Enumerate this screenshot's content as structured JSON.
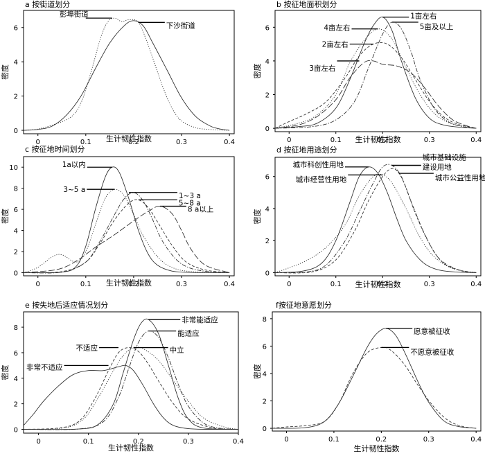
{
  "chart_data": [
    {
      "type": "line",
      "title": "a  按街道划分",
      "xlabel": "生计韧性指数",
      "ylabel": "密度",
      "xlim": [
        -0.03,
        0.41
      ],
      "ylim": [
        -0.2,
        7.0
      ],
      "xticks": [
        "0",
        "0.1",
        "0.2",
        "0.3",
        "0.4"
      ],
      "yticks": [
        "0",
        "2",
        "4",
        "6"
      ],
      "series": [
        {
          "name": "彭埠街道",
          "style": "dotted",
          "x": [
            -0.03,
            0.0,
            0.04,
            0.07,
            0.09,
            0.11,
            0.13,
            0.145,
            0.16,
            0.175,
            0.19,
            0.21,
            0.23,
            0.26,
            0.28,
            0.3,
            0.33,
            0.36,
            0.38,
            0.4
          ],
          "y": [
            0.0,
            0.08,
            0.4,
            0.8,
            1.6,
            3.3,
            5.3,
            6.3,
            6.55,
            6.35,
            6.45,
            6.3,
            5.0,
            2.6,
            1.3,
            0.55,
            0.15,
            0.05,
            0.02,
            0.0
          ]
        },
        {
          "name": "下沙街道",
          "style": "solid",
          "x": [
            -0.03,
            0.0,
            0.03,
            0.06,
            0.09,
            0.12,
            0.15,
            0.18,
            0.2,
            0.22,
            0.24,
            0.27,
            0.3,
            0.33,
            0.36,
            0.38,
            0.4
          ],
          "y": [
            0.0,
            0.05,
            0.25,
            0.9,
            2.0,
            3.6,
            5.1,
            6.1,
            6.4,
            6.1,
            5.1,
            3.5,
            1.9,
            0.8,
            0.25,
            0.08,
            0.0
          ]
        }
      ],
      "annotations": [
        {
          "text": "彭埠街道",
          "x": 0.155,
          "y": 6.55
        },
        {
          "text": "下沙街道",
          "x": 0.21,
          "y": 6.3
        }
      ]
    },
    {
      "type": "line",
      "title": "b  按征地面积划分",
      "xlabel": "生计韧性指数",
      "ylabel": "密度",
      "xlim": [
        -0.03,
        0.41
      ],
      "ylim": [
        -0.2,
        7.0
      ],
      "xticks": [
        "0",
        "0.1",
        "0.2",
        "0.3",
        "0.4"
      ],
      "yticks": [
        "0",
        "2",
        "4",
        "6"
      ],
      "series": [
        {
          "name": "1亩左右",
          "style": "solid",
          "x": [
            -0.03,
            0.02,
            0.06,
            0.1,
            0.13,
            0.16,
            0.18,
            0.2,
            0.22,
            0.24,
            0.27,
            0.3,
            0.33,
            0.37,
            0.4
          ],
          "y": [
            0.0,
            0.1,
            0.3,
            1.2,
            2.9,
            5.0,
            6.1,
            6.6,
            5.8,
            4.0,
            1.8,
            0.6,
            0.2,
            0.05,
            0.0
          ]
        },
        {
          "name": "5亩及以上",
          "style": "dashdot",
          "x": [
            -0.03,
            0.05,
            0.1,
            0.14,
            0.17,
            0.2,
            0.22,
            0.24,
            0.26,
            0.28,
            0.31,
            0.34,
            0.37,
            0.4
          ],
          "y": [
            0.0,
            0.1,
            0.5,
            1.6,
            3.6,
            5.6,
            6.3,
            5.9,
            4.6,
            2.9,
            1.2,
            0.4,
            0.1,
            0.0
          ]
        },
        {
          "name": "4亩左右",
          "style": "dotted",
          "x": [
            -0.03,
            0.02,
            0.06,
            0.1,
            0.13,
            0.16,
            0.19,
            0.22,
            0.25,
            0.28,
            0.31,
            0.34,
            0.38,
            0.4
          ],
          "y": [
            0.0,
            0.3,
            0.8,
            2.0,
            3.9,
            5.2,
            5.9,
            5.3,
            3.6,
            2.0,
            0.9,
            0.35,
            0.1,
            0.0
          ]
        },
        {
          "name": "2亩左右",
          "style": "dashed",
          "x": [
            -0.03,
            0.0,
            0.04,
            0.08,
            0.12,
            0.15,
            0.18,
            0.21,
            0.24,
            0.27,
            0.3,
            0.33,
            0.36,
            0.4
          ],
          "y": [
            0.0,
            0.4,
            0.9,
            1.6,
            3.0,
            4.3,
            5.0,
            5.0,
            4.2,
            2.9,
            1.6,
            0.7,
            0.25,
            0.0
          ]
        },
        {
          "name": "3亩左右",
          "style": "longdash",
          "x": [
            -0.03,
            0.02,
            0.06,
            0.1,
            0.13,
            0.16,
            0.18,
            0.2,
            0.23,
            0.26,
            0.29,
            0.32,
            0.35,
            0.38,
            0.4
          ],
          "y": [
            0.0,
            0.2,
            0.7,
            1.7,
            3.0,
            3.9,
            4.0,
            3.8,
            3.7,
            3.3,
            2.4,
            1.3,
            0.5,
            0.15,
            0.0
          ]
        }
      ],
      "annotations": [
        {
          "text": "1亩左右",
          "x": 0.2,
          "y": 6.6
        },
        {
          "text": "5亩及以上",
          "x": 0.22,
          "y": 6.3
        },
        {
          "text": "4亩左右",
          "x": 0.19,
          "y": 5.9
        },
        {
          "text": "2亩左右",
          "x": 0.18,
          "y": 5.0
        },
        {
          "text": "3亩左右",
          "x": 0.15,
          "y": 4.0
        }
      ]
    },
    {
      "type": "line",
      "title": "c  按征地时间划分",
      "xlabel": "生计韧性指数",
      "ylabel": "密度",
      "xlim": [
        -0.03,
        0.41
      ],
      "ylim": [
        -0.3,
        11.0
      ],
      "xticks": [
        "0",
        "0.1",
        "0.2",
        "0.3",
        "0.4"
      ],
      "yticks": [
        "0",
        "2",
        "4",
        "6",
        "8",
        "10"
      ],
      "series": [
        {
          "name": "1a以内",
          "style": "solid",
          "x": [
            -0.03,
            0.05,
            0.08,
            0.1,
            0.12,
            0.14,
            0.155,
            0.17,
            0.19,
            0.21,
            0.23,
            0.25,
            0.28,
            0.32,
            0.4
          ],
          "y": [
            0.0,
            0.05,
            0.6,
            2.5,
            6.0,
            9.0,
            10.0,
            9.5,
            7.0,
            4.0,
            1.8,
            0.7,
            0.15,
            0.02,
            0.0
          ]
        },
        {
          "name": "3~5 a",
          "style": "dotted",
          "x": [
            -0.03,
            0.0,
            0.03,
            0.05,
            0.08,
            0.1,
            0.12,
            0.14,
            0.16,
            0.18,
            0.2,
            0.22,
            0.25,
            0.28,
            0.32,
            0.4
          ],
          "y": [
            0.0,
            0.5,
            1.5,
            1.7,
            1.0,
            2.0,
            4.5,
            7.0,
            7.9,
            7.3,
            5.5,
            3.5,
            1.5,
            0.5,
            0.1,
            0.0
          ]
        },
        {
          "name": "1~3 a",
          "style": "dashdot",
          "x": [
            -0.03,
            0.05,
            0.1,
            0.13,
            0.16,
            0.18,
            0.2,
            0.22,
            0.24,
            0.26,
            0.29,
            0.32,
            0.36,
            0.4
          ],
          "y": [
            0.0,
            0.05,
            1.0,
            3.0,
            5.5,
            7.0,
            7.6,
            6.8,
            5.0,
            3.0,
            1.2,
            0.4,
            0.08,
            0.0
          ]
        },
        {
          "name": "5~8 a",
          "style": "dashed",
          "x": [
            -0.03,
            0.05,
            0.1,
            0.13,
            0.16,
            0.19,
            0.21,
            0.23,
            0.25,
            0.28,
            0.31,
            0.35,
            0.4
          ],
          "y": [
            0.0,
            0.1,
            1.0,
            2.8,
            5.0,
            6.6,
            6.9,
            6.2,
            4.8,
            2.6,
            1.0,
            0.25,
            0.0
          ]
        },
        {
          "name": "8 a以上",
          "style": "longdash",
          "x": [
            -0.03,
            0.04,
            0.08,
            0.12,
            0.16,
            0.2,
            0.23,
            0.255,
            0.28,
            0.3,
            0.32,
            0.35,
            0.4
          ],
          "y": [
            0.0,
            0.3,
            1.1,
            2.4,
            3.6,
            4.9,
            5.8,
            6.3,
            5.6,
            4.0,
            2.2,
            0.7,
            0.0
          ]
        }
      ],
      "annotations": [
        {
          "text": "1a以内",
          "x": 0.155,
          "y": 10.0
        },
        {
          "text": "3~5 a",
          "x": 0.16,
          "y": 7.9
        },
        {
          "text": "1~3 a",
          "x": 0.19,
          "y": 7.6
        },
        {
          "text": "5~8 a",
          "x": 0.21,
          "y": 6.9
        },
        {
          "text": "8 a以上",
          "x": 0.255,
          "y": 6.3
        }
      ]
    },
    {
      "type": "line",
      "title": "d  按征地用途划分",
      "xlabel": "生计韧性指数",
      "ylabel": "密度",
      "xlim": [
        -0.03,
        0.41
      ],
      "ylim": [
        -0.2,
        7.2
      ],
      "xticks": [
        "0",
        "0.1",
        "0.2",
        "0.3",
        "0.4"
      ],
      "yticks": [
        "0",
        "2",
        "4",
        "6"
      ],
      "series": [
        {
          "name": "城市科创性用地",
          "style": "solid",
          "x": [
            -0.03,
            0.03,
            0.07,
            0.1,
            0.13,
            0.15,
            0.17,
            0.19,
            0.21,
            0.23,
            0.25,
            0.28,
            0.31,
            0.35,
            0.4
          ],
          "y": [
            0.0,
            0.1,
            0.6,
            2.0,
            4.4,
            6.0,
            6.6,
            6.2,
            5.0,
            3.4,
            2.0,
            0.8,
            0.25,
            0.05,
            0.0
          ]
        },
        {
          "name": "城市基础设施建设用地",
          "style": "dashdot",
          "x": [
            -0.03,
            0.04,
            0.08,
            0.12,
            0.15,
            0.18,
            0.2,
            0.22,
            0.24,
            0.26,
            0.29,
            0.32,
            0.36,
            0.4
          ],
          "y": [
            0.0,
            0.05,
            0.5,
            2.0,
            3.8,
            5.6,
            6.6,
            6.7,
            6.0,
            4.5,
            2.4,
            0.9,
            0.2,
            0.0
          ]
        },
        {
          "name": "城市经营性用地",
          "style": "dotted",
          "x": [
            -0.03,
            0.0,
            0.04,
            0.08,
            0.12,
            0.15,
            0.18,
            0.2,
            0.22,
            0.25,
            0.28,
            0.31,
            0.35,
            0.4
          ],
          "y": [
            0.0,
            0.3,
            0.8,
            1.6,
            3.0,
            4.8,
            6.0,
            6.1,
            5.6,
            4.0,
            2.2,
            1.0,
            0.25,
            0.0
          ]
        },
        {
          "name": "城市公益性用地",
          "style": "dashed",
          "x": [
            -0.03,
            0.05,
            0.1,
            0.14,
            0.17,
            0.2,
            0.22,
            0.235,
            0.25,
            0.27,
            0.3,
            0.33,
            0.37,
            0.4
          ],
          "y": [
            0.0,
            0.05,
            0.8,
            2.6,
            4.5,
            6.0,
            6.5,
            6.2,
            5.3,
            3.7,
            1.8,
            0.6,
            0.1,
            0.0
          ]
        }
      ],
      "annotations": [
        {
          "text": "城市科创性用地",
          "x": 0.17,
          "y": 6.6
        },
        {
          "text": "城市基础设施",
          "x": 0.22,
          "y": 6.7
        },
        {
          "text": "建设用地",
          "x": 0.22,
          "y": 6.7
        },
        {
          "text": "城市经营性用地",
          "x": 0.2,
          "y": 6.1
        },
        {
          "text": "城市公益性用地",
          "x": 0.235,
          "y": 6.2
        }
      ]
    },
    {
      "type": "line",
      "title": "e  按失地后适应情况划分",
      "xlabel": "生计韧性指数",
      "ylabel": "密度",
      "xlim": [
        -0.03,
        0.4
      ],
      "ylim": [
        -0.3,
        9.2
      ],
      "xticks": [
        "0",
        "0.1",
        "0.2",
        "0.3",
        "0.4"
      ],
      "yticks": [
        "0",
        "2",
        "4",
        "6",
        "8"
      ],
      "series": [
        {
          "name": "非常能适应",
          "style": "solid",
          "x": [
            -0.03,
            0.08,
            0.12,
            0.15,
            0.17,
            0.19,
            0.205,
            0.22,
            0.24,
            0.26,
            0.28,
            0.3,
            0.33,
            0.4
          ],
          "y": [
            0.0,
            0.02,
            0.4,
            2.0,
            4.5,
            7.0,
            8.3,
            8.6,
            7.5,
            5.0,
            2.4,
            0.8,
            0.1,
            0.0
          ]
        },
        {
          "name": "能适应",
          "style": "dashdot",
          "x": [
            -0.03,
            0.08,
            0.13,
            0.16,
            0.18,
            0.2,
            0.22,
            0.24,
            0.26,
            0.28,
            0.3,
            0.33,
            0.36,
            0.4
          ],
          "y": [
            0.0,
            0.02,
            0.6,
            2.5,
            4.7,
            6.8,
            7.7,
            7.2,
            5.6,
            3.5,
            1.8,
            0.5,
            0.1,
            0.0
          ]
        },
        {
          "name": "不适应",
          "style": "dashed",
          "x": [
            -0.03,
            0.04,
            0.08,
            0.11,
            0.14,
            0.16,
            0.18,
            0.2,
            0.22,
            0.24,
            0.27,
            0.3,
            0.35,
            0.4
          ],
          "y": [
            0.0,
            0.1,
            0.6,
            2.2,
            4.6,
            6.0,
            6.4,
            6.1,
            5.1,
            3.8,
            2.0,
            0.8,
            0.1,
            0.0
          ]
        },
        {
          "name": "中立",
          "style": "dotted",
          "x": [
            -0.03,
            0.05,
            0.09,
            0.12,
            0.15,
            0.17,
            0.19,
            0.21,
            0.24,
            0.27,
            0.3,
            0.33,
            0.37,
            0.4
          ],
          "y": [
            0.0,
            0.1,
            0.8,
            2.5,
            4.6,
            5.8,
            6.4,
            6.3,
            5.4,
            3.8,
            2.2,
            0.9,
            0.2,
            0.0
          ]
        },
        {
          "name": "非常不适应",
          "style": "solid",
          "x": [
            -0.03,
            -0.01,
            0.01,
            0.04,
            0.07,
            0.1,
            0.13,
            0.16,
            0.175,
            0.19,
            0.21,
            0.23,
            0.25,
            0.27,
            0.3,
            0.34,
            0.4
          ],
          "y": [
            0.3,
            1.2,
            2.2,
            3.4,
            4.3,
            4.6,
            4.6,
            4.9,
            5.0,
            4.6,
            3.4,
            2.0,
            0.9,
            0.3,
            0.05,
            0.0,
            0.0
          ]
        }
      ],
      "annotations": [
        {
          "text": "非常能适应",
          "x": 0.22,
          "y": 8.6
        },
        {
          "text": "能适应",
          "x": 0.22,
          "y": 7.7
        },
        {
          "text": "不适应",
          "x": 0.16,
          "y": 6.4
        },
        {
          "text": "中立",
          "x": 0.19,
          "y": 6.4
        },
        {
          "text": "非常不适应",
          "x": 0.14,
          "y": 5.0
        }
      ]
    },
    {
      "type": "line",
      "title": "f按征地意愿划分",
      "xlabel": "生计韧性指数",
      "ylabel": "密度",
      "xlim": [
        -0.03,
        0.41
      ],
      "ylim": [
        -0.2,
        8.5
      ],
      "xticks": [
        "0",
        "0.1",
        "0.2",
        "0.3",
        "0.4"
      ],
      "yticks": [
        "0",
        "2",
        "4",
        "6",
        "8"
      ],
      "series": [
        {
          "name": "愿意被征收",
          "style": "solid",
          "x": [
            -0.03,
            0.04,
            0.08,
            0.11,
            0.14,
            0.17,
            0.19,
            0.21,
            0.23,
            0.25,
            0.28,
            0.3,
            0.33,
            0.36,
            0.4
          ],
          "y": [
            0.0,
            0.05,
            0.5,
            1.8,
            3.8,
            5.9,
            6.9,
            7.3,
            6.8,
            5.5,
            3.2,
            1.9,
            0.6,
            0.15,
            0.0
          ]
        },
        {
          "name": "不愿意被征收",
          "style": "dashed",
          "x": [
            -0.03,
            0.0,
            0.04,
            0.08,
            0.11,
            0.14,
            0.17,
            0.2,
            0.22,
            0.25,
            0.28,
            0.31,
            0.34,
            0.37,
            0.4
          ],
          "y": [
            0.0,
            0.1,
            0.2,
            0.5,
            1.8,
            4.0,
            5.5,
            5.9,
            5.7,
            4.6,
            3.0,
            1.6,
            0.6,
            0.15,
            0.0
          ]
        }
      ],
      "annotations": [
        {
          "text": "愿意被征收",
          "x": 0.21,
          "y": 7.3
        },
        {
          "text": "不愿意被征收",
          "x": 0.2,
          "y": 5.9
        }
      ]
    }
  ]
}
